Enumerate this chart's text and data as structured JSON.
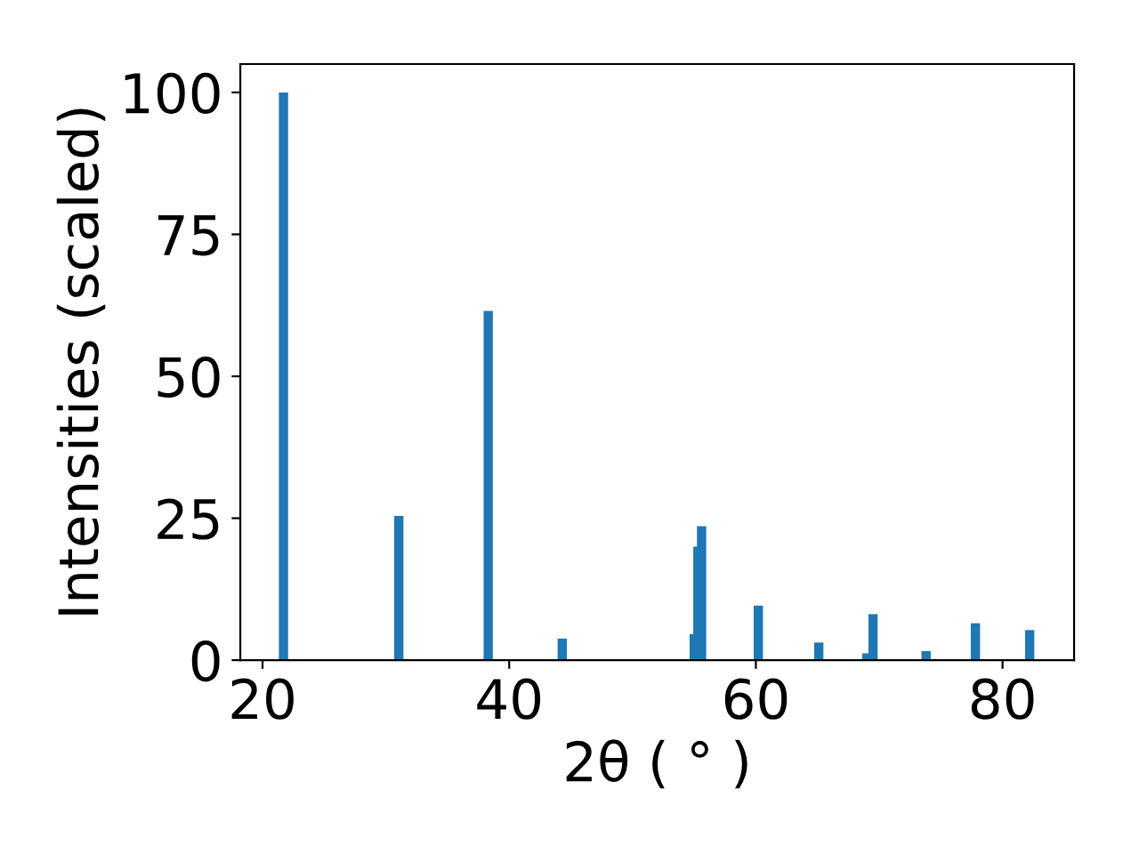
{
  "chart_data": {
    "type": "bar",
    "xlabel": "2θ ( ° )",
    "ylabel": "Intensities (scaled)",
    "x": [
      21.7,
      31.05,
      38.3,
      44.3,
      55.0,
      55.3,
      55.6,
      60.2,
      65.1,
      69.0,
      69.5,
      73.8,
      77.8,
      82.2
    ],
    "values": [
      100,
      25.4,
      61.5,
      3.8,
      4.6,
      20,
      23.6,
      9.6,
      3.1,
      1.2,
      8.1,
      1.6,
      6.5,
      5.3
    ],
    "color": "#1f77b4",
    "xlim": [
      18.2,
      85.8
    ],
    "ylim": [
      0,
      105
    ],
    "xticks": [
      20,
      40,
      60,
      80
    ],
    "yticks": [
      0,
      25,
      50,
      75,
      100
    ],
    "grid": false
  }
}
